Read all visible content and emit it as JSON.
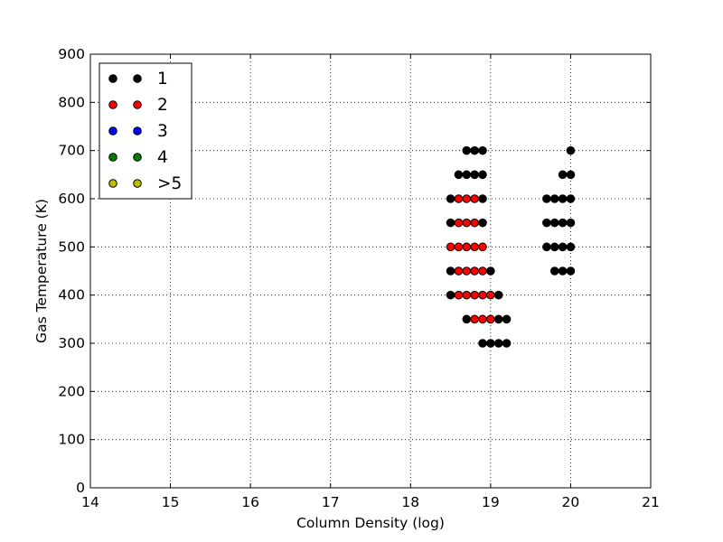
{
  "chart_data": {
    "type": "scatter",
    "xlabel": "Column Density (log)",
    "ylabel": "Gas Temperature (K)",
    "xlim": [
      14,
      21
    ],
    "ylim": [
      0,
      900
    ],
    "xticks": [
      "14",
      "15",
      "16",
      "17",
      "18",
      "19",
      "20",
      "21"
    ],
    "yticks": [
      "0",
      "100",
      "200",
      "300",
      "400",
      "500",
      "600",
      "700",
      "800",
      "900"
    ],
    "grid": true,
    "legend": {
      "position": "top-left",
      "entries": [
        {
          "label": "1",
          "color": "#000000"
        },
        {
          "label": "2",
          "color": "#ff0000"
        },
        {
          "label": "3",
          "color": "#0000ff"
        },
        {
          "label": "4",
          "color": "#008000"
        },
        {
          "label": ">5",
          "color": "#bfbf00"
        }
      ]
    },
    "series": [
      {
        "name": "1",
        "color": "#000000",
        "points": [
          [
            18.7,
            700
          ],
          [
            18.8,
            700
          ],
          [
            18.9,
            700
          ],
          [
            20.0,
            700
          ],
          [
            18.6,
            650
          ],
          [
            18.7,
            650
          ],
          [
            18.8,
            650
          ],
          [
            18.9,
            650
          ],
          [
            19.9,
            650
          ],
          [
            20.0,
            650
          ],
          [
            18.5,
            600
          ],
          [
            18.9,
            600
          ],
          [
            19.7,
            600
          ],
          [
            19.8,
            600
          ],
          [
            19.9,
            600
          ],
          [
            20.0,
            600
          ],
          [
            18.5,
            550
          ],
          [
            18.9,
            550
          ],
          [
            19.7,
            550
          ],
          [
            19.8,
            550
          ],
          [
            19.9,
            550
          ],
          [
            20.0,
            550
          ],
          [
            19.7,
            500
          ],
          [
            19.8,
            500
          ],
          [
            19.9,
            500
          ],
          [
            20.0,
            500
          ],
          [
            18.5,
            450
          ],
          [
            19.0,
            450
          ],
          [
            19.8,
            450
          ],
          [
            19.9,
            450
          ],
          [
            20.0,
            450
          ],
          [
            18.5,
            400
          ],
          [
            19.1,
            400
          ],
          [
            18.7,
            350
          ],
          [
            19.1,
            350
          ],
          [
            19.2,
            350
          ],
          [
            18.9,
            300
          ],
          [
            19.0,
            300
          ],
          [
            19.1,
            300
          ],
          [
            19.2,
            300
          ]
        ]
      },
      {
        "name": "2",
        "color": "#ff0000",
        "points": [
          [
            18.6,
            600
          ],
          [
            18.7,
            600
          ],
          [
            18.8,
            600
          ],
          [
            18.6,
            550
          ],
          [
            18.7,
            550
          ],
          [
            18.8,
            550
          ],
          [
            18.5,
            500
          ],
          [
            18.6,
            500
          ],
          [
            18.7,
            500
          ],
          [
            18.8,
            500
          ],
          [
            18.9,
            500
          ],
          [
            18.6,
            450
          ],
          [
            18.7,
            450
          ],
          [
            18.8,
            450
          ],
          [
            18.9,
            450
          ],
          [
            18.6,
            400
          ],
          [
            18.7,
            400
          ],
          [
            18.8,
            400
          ],
          [
            18.9,
            400
          ],
          [
            19.0,
            400
          ],
          [
            18.8,
            350
          ],
          [
            18.9,
            350
          ],
          [
            19.0,
            350
          ]
        ]
      }
    ]
  }
}
